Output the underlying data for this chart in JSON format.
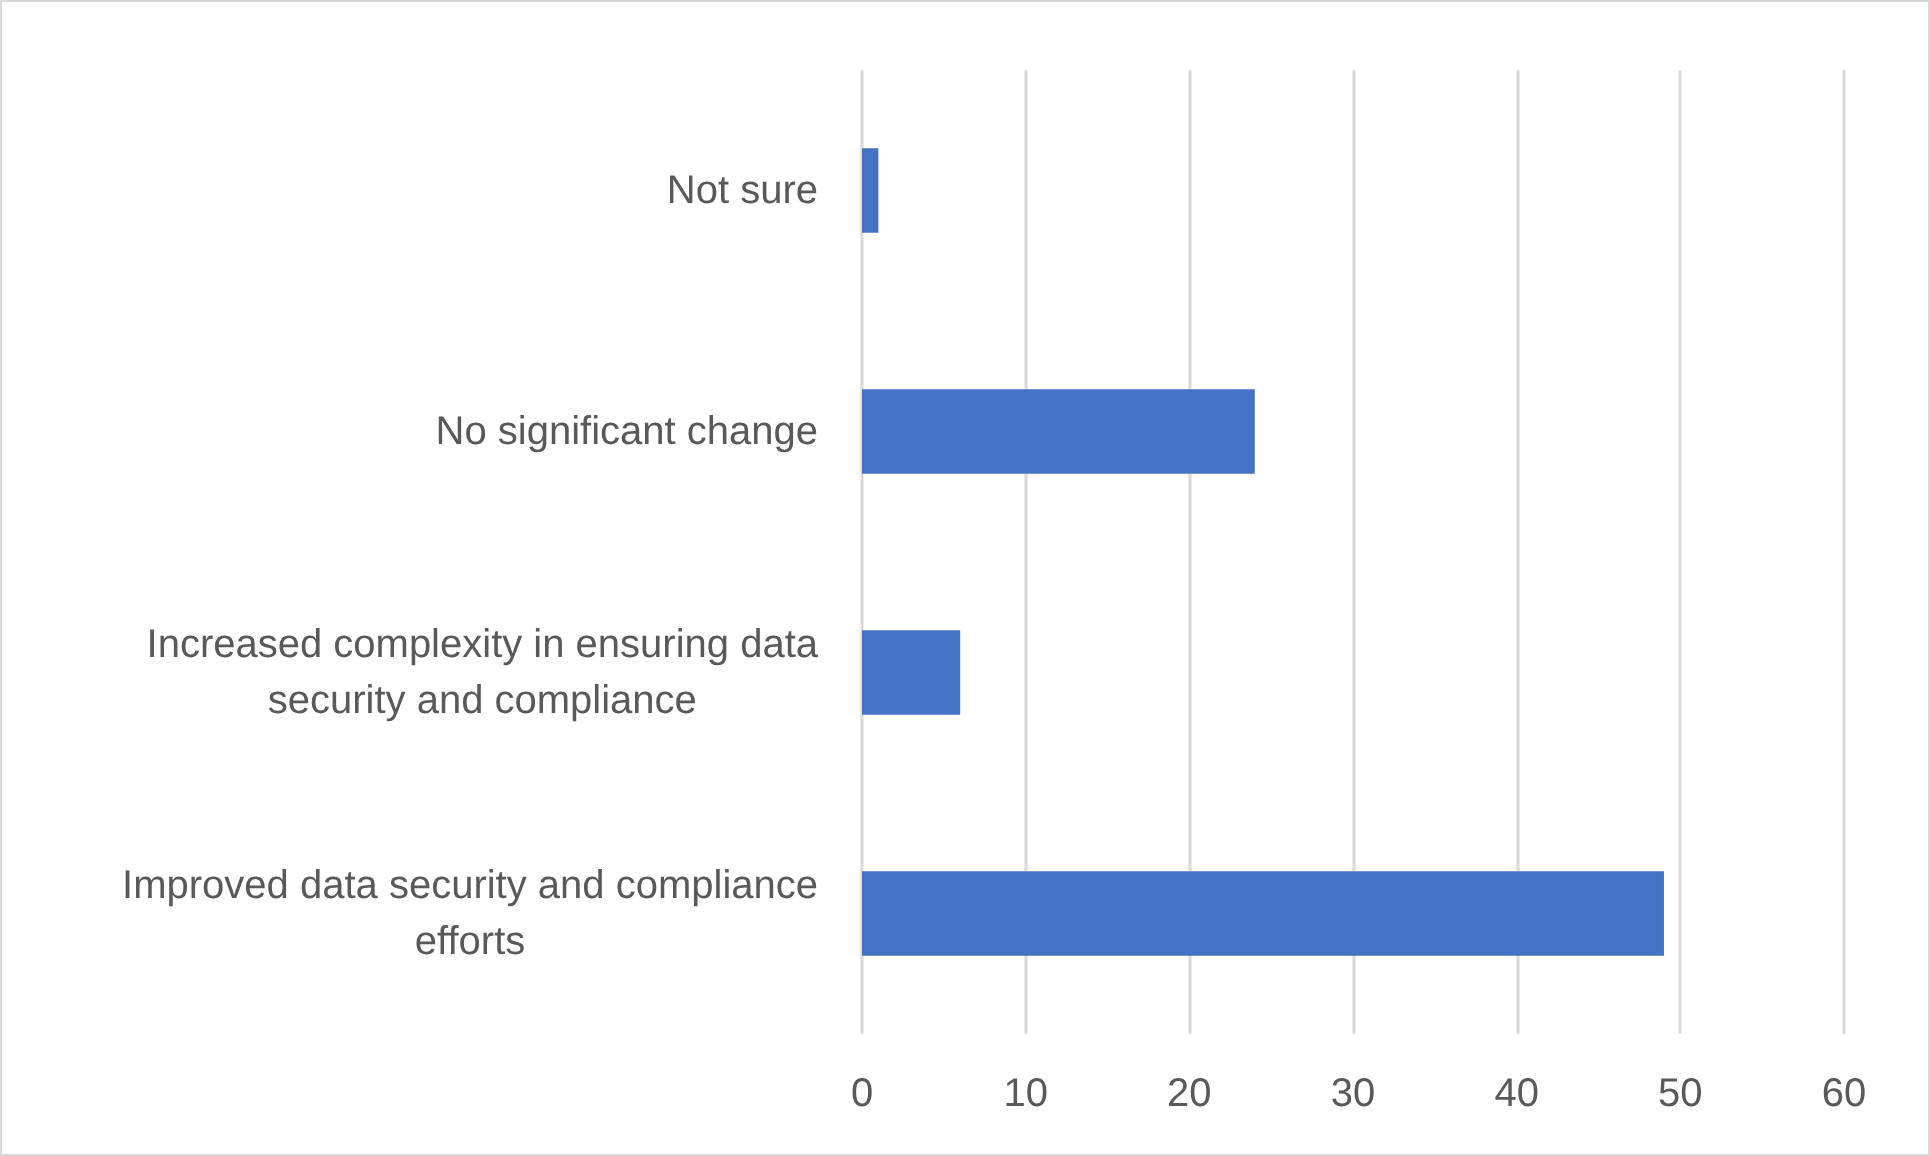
{
  "chart_data": {
    "type": "bar",
    "orientation": "horizontal",
    "categories": [
      "Not sure",
      "No significant change",
      "Increased complexity in ensuring data security and compliance",
      "Improved data security and compliance efforts"
    ],
    "values": [
      1,
      24,
      6,
      49
    ],
    "color": "#4472c4",
    "xlim": [
      0,
      60
    ],
    "xticks": [
      0,
      10,
      20,
      30,
      40,
      50,
      60
    ],
    "grid": "x"
  }
}
